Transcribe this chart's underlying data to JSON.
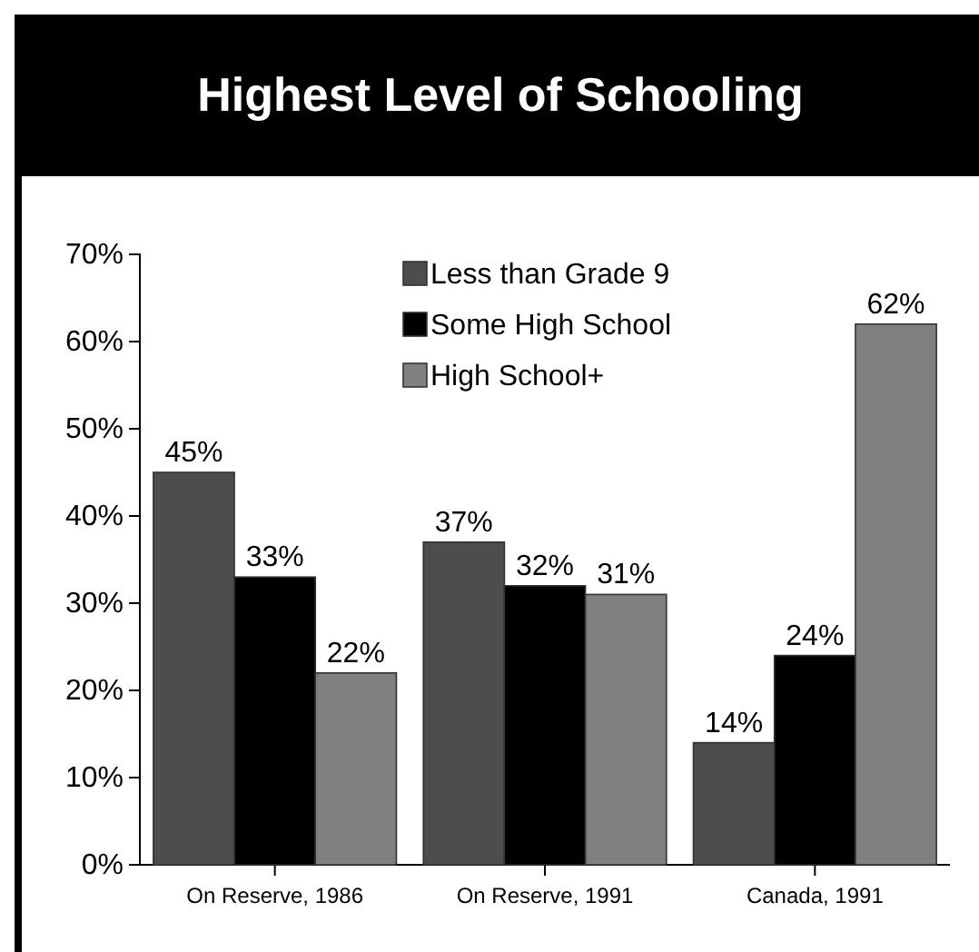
{
  "chart_data": {
    "type": "bar",
    "title": "Highest Level of Schooling",
    "categories": [
      "On Reserve, 1986",
      "On Reserve, 1991",
      "Canada, 1991"
    ],
    "series": [
      {
        "name": "Less than Grade 9",
        "color": "#4d4d4d",
        "values": [
          45,
          37,
          14
        ],
        "value_labels": [
          "45%",
          "37%",
          "14%"
        ]
      },
      {
        "name": "Some High School",
        "color": "#000000",
        "values": [
          33,
          32,
          24
        ],
        "value_labels": [
          "33%",
          "32%",
          "24%"
        ]
      },
      {
        "name": "High School+",
        "color": "#808080",
        "values": [
          22,
          31,
          62
        ],
        "value_labels": [
          "22%",
          "31%",
          "62%"
        ]
      }
    ],
    "ylim": [
      0,
      70
    ],
    "yticks": [
      {
        "value": 0,
        "label": "0%"
      },
      {
        "value": 10,
        "label": "10%"
      },
      {
        "value": 20,
        "label": "20%"
      },
      {
        "value": 30,
        "label": "30%"
      },
      {
        "value": 40,
        "label": "40%"
      },
      {
        "value": 50,
        "label": "50%"
      },
      {
        "value": 60,
        "label": "60%"
      },
      {
        "value": 70,
        "label": "70%"
      }
    ],
    "grid": false,
    "legend": "top right"
  }
}
